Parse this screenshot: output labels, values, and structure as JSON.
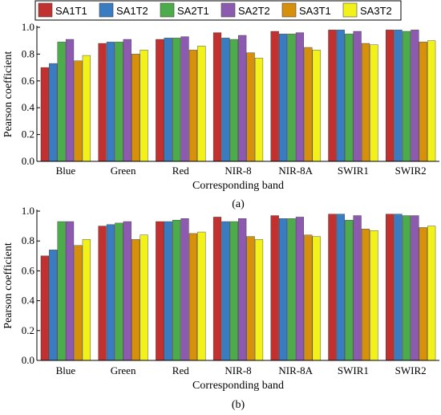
{
  "legend": {
    "items": [
      {
        "label": "SA1T1",
        "color": "#c0312f"
      },
      {
        "label": "SA1T2",
        "color": "#3a7cc2"
      },
      {
        "label": "SA2T1",
        "color": "#4cac4c"
      },
      {
        "label": "SA2T2",
        "color": "#8c5bb0"
      },
      {
        "label": "SA3T1",
        "color": "#d6900c"
      },
      {
        "label": "SA3T2",
        "color": "#f2f21a"
      }
    ]
  },
  "chart_data": [
    {
      "type": "bar",
      "caption": "(a)",
      "xlabel": "Corresponding band",
      "ylabel": "Pearson coefficient",
      "ylim": [
        0,
        1.0
      ],
      "yticks": [
        "0.0",
        "0.2",
        "0.4",
        "0.6",
        "0.8",
        "1.0"
      ],
      "categories": [
        "Blue",
        "Green",
        "Red",
        "NIR-8",
        "NIR-8A",
        "SWIR1",
        "SWIR2"
      ],
      "series": [
        {
          "name": "SA1T1",
          "values": [
            0.7,
            0.88,
            0.91,
            0.96,
            0.97,
            0.98,
            0.98
          ]
        },
        {
          "name": "SA1T2",
          "values": [
            0.73,
            0.89,
            0.92,
            0.92,
            0.95,
            0.98,
            0.98
          ]
        },
        {
          "name": "SA2T1",
          "values": [
            0.89,
            0.89,
            0.92,
            0.91,
            0.95,
            0.95,
            0.97
          ]
        },
        {
          "name": "SA2T2",
          "values": [
            0.91,
            0.91,
            0.93,
            0.94,
            0.96,
            0.97,
            0.98
          ]
        },
        {
          "name": "SA3T1",
          "values": [
            0.75,
            0.8,
            0.83,
            0.81,
            0.85,
            0.88,
            0.89
          ]
        },
        {
          "name": "SA3T2",
          "values": [
            0.79,
            0.83,
            0.86,
            0.77,
            0.83,
            0.87,
            0.9
          ]
        }
      ]
    },
    {
      "type": "bar",
      "caption": "(b)",
      "xlabel": "Corresponding band",
      "ylabel": "Pearson coefficient",
      "ylim": [
        0,
        1.0
      ],
      "yticks": [
        "0.0",
        "0.2",
        "0.4",
        "0.6",
        "0.8",
        "1.0"
      ],
      "categories": [
        "Blue",
        "Green",
        "Red",
        "NIR-8",
        "NIR-8A",
        "SWIR1",
        "SWIR2"
      ],
      "series": [
        {
          "name": "SA1T1",
          "values": [
            0.7,
            0.9,
            0.93,
            0.96,
            0.97,
            0.98,
            0.98
          ]
        },
        {
          "name": "SA1T2",
          "values": [
            0.74,
            0.91,
            0.93,
            0.93,
            0.95,
            0.98,
            0.98
          ]
        },
        {
          "name": "SA2T1",
          "values": [
            0.93,
            0.92,
            0.94,
            0.93,
            0.95,
            0.94,
            0.97
          ]
        },
        {
          "name": "SA2T2",
          "values": [
            0.93,
            0.93,
            0.95,
            0.95,
            0.96,
            0.97,
            0.97
          ]
        },
        {
          "name": "SA3T1",
          "values": [
            0.77,
            0.81,
            0.85,
            0.83,
            0.84,
            0.88,
            0.89
          ]
        },
        {
          "name": "SA3T2",
          "values": [
            0.81,
            0.84,
            0.86,
            0.81,
            0.83,
            0.87,
            0.9
          ]
        }
      ]
    }
  ]
}
